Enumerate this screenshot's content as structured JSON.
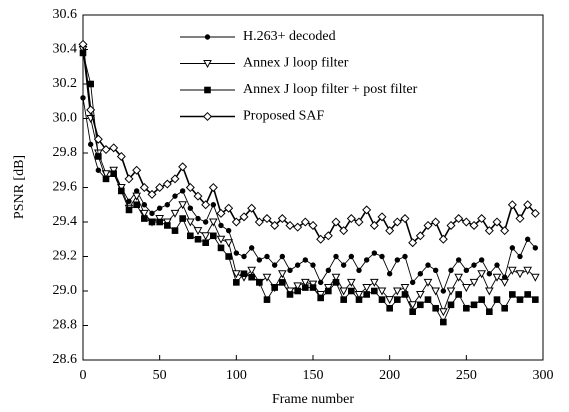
{
  "chart_data": {
    "type": "line",
    "x_label": "Frame number",
    "y_label": "PSNR [dB]",
    "xlim": [
      0,
      300
    ],
    "xticks": [
      0,
      50,
      100,
      150,
      200,
      250,
      300
    ],
    "ylim": [
      28.6,
      30.6
    ],
    "yticks": [
      28.6,
      28.8,
      {
        "value": 29,
        "label": "29.0"
      },
      29.2,
      29.4,
      29.6,
      29.8,
      {
        "value": 30,
        "label": "30.0"
      },
      30.2,
      30.4,
      30.6
    ],
    "grid": false,
    "legend": "top",
    "x": [
      0,
      5,
      10,
      15,
      20,
      25,
      30,
      35,
      40,
      45,
      50,
      55,
      60,
      65,
      70,
      75,
      80,
      85,
      90,
      95,
      100,
      105,
      110,
      115,
      120,
      125,
      130,
      135,
      140,
      145,
      150,
      155,
      160,
      165,
      170,
      175,
      180,
      185,
      190,
      195,
      200,
      205,
      210,
      215,
      220,
      225,
      230,
      235,
      240,
      245,
      250,
      255,
      260,
      265,
      270,
      275,
      280,
      285,
      290,
      295
    ],
    "series": [
      {
        "name": "H.263+ decoded",
        "color": "#000000",
        "marker": "circle",
        "values": [
          30.12,
          29.85,
          29.7,
          29.65,
          29.68,
          29.6,
          29.52,
          29.58,
          29.5,
          29.45,
          29.48,
          29.5,
          29.55,
          29.58,
          29.48,
          29.42,
          29.4,
          29.5,
          29.38,
          29.35,
          29.22,
          29.2,
          29.25,
          29.18,
          29.2,
          29.15,
          29.2,
          29.12,
          29.15,
          29.18,
          29.15,
          29.05,
          29.12,
          29.2,
          29.15,
          29.2,
          29.12,
          29.18,
          29.22,
          29.2,
          29.1,
          29.18,
          29.2,
          29.05,
          29.1,
          29.15,
          29.12,
          29.0,
          29.12,
          29.18,
          29.12,
          29.15,
          29.18,
          29.1,
          29.15,
          29.08,
          29.25,
          29.2,
          29.3,
          29.25
        ]
      },
      {
        "name": "Annex J loop filter",
        "color": "#000000",
        "marker": "triangle-down",
        "values": [
          30.4,
          30.0,
          29.8,
          29.68,
          29.7,
          29.6,
          29.48,
          29.55,
          29.45,
          29.4,
          29.42,
          29.4,
          29.45,
          29.5,
          29.4,
          29.35,
          29.32,
          29.4,
          29.3,
          29.28,
          29.1,
          29.08,
          29.12,
          29.05,
          29.08,
          29.02,
          29.1,
          29.0,
          29.03,
          29.05,
          29.04,
          28.98,
          29.02,
          29.08,
          29.0,
          29.05,
          28.98,
          29.02,
          29.05,
          29.0,
          28.95,
          29.0,
          29.02,
          28.92,
          28.98,
          29.05,
          29.0,
          28.88,
          29.0,
          29.08,
          29.02,
          29.05,
          29.1,
          29.0,
          29.08,
          29.05,
          29.12,
          29.1,
          29.12,
          29.08
        ]
      },
      {
        "name": "Annex J loop filter + post filter",
        "color": "#000000",
        "marker": "square",
        "values": [
          30.38,
          30.2,
          29.78,
          29.65,
          29.68,
          29.58,
          29.47,
          29.5,
          29.42,
          29.4,
          29.4,
          29.38,
          29.35,
          29.42,
          29.32,
          29.3,
          29.28,
          29.32,
          29.25,
          29.2,
          29.05,
          29.1,
          29.08,
          29.05,
          28.95,
          29.02,
          29.05,
          28.98,
          29.0,
          29.02,
          29.02,
          28.96,
          29.0,
          29.05,
          28.95,
          29.0,
          28.95,
          28.98,
          29.0,
          28.95,
          28.9,
          28.95,
          28.98,
          28.88,
          28.92,
          28.95,
          28.9,
          28.82,
          28.92,
          28.98,
          28.9,
          28.92,
          28.95,
          28.88,
          28.95,
          28.9,
          28.98,
          28.95,
          28.98,
          28.95
        ]
      },
      {
        "name": "Proposed SAF",
        "color": "#000000",
        "marker": "diamond",
        "values": [
          30.43,
          30.05,
          29.88,
          29.82,
          29.83,
          29.78,
          29.65,
          29.7,
          29.6,
          29.56,
          29.6,
          29.62,
          29.65,
          29.72,
          29.6,
          29.55,
          29.5,
          29.6,
          29.45,
          29.48,
          29.4,
          29.43,
          29.48,
          29.4,
          29.42,
          29.38,
          29.42,
          29.38,
          29.37,
          29.4,
          29.38,
          29.3,
          29.32,
          29.4,
          29.35,
          29.42,
          29.4,
          29.47,
          29.38,
          29.43,
          29.35,
          29.4,
          29.42,
          29.28,
          29.32,
          29.38,
          29.4,
          29.3,
          29.38,
          29.42,
          29.4,
          29.38,
          29.42,
          29.35,
          29.4,
          29.35,
          29.5,
          29.42,
          29.5,
          29.45
        ]
      }
    ]
  }
}
